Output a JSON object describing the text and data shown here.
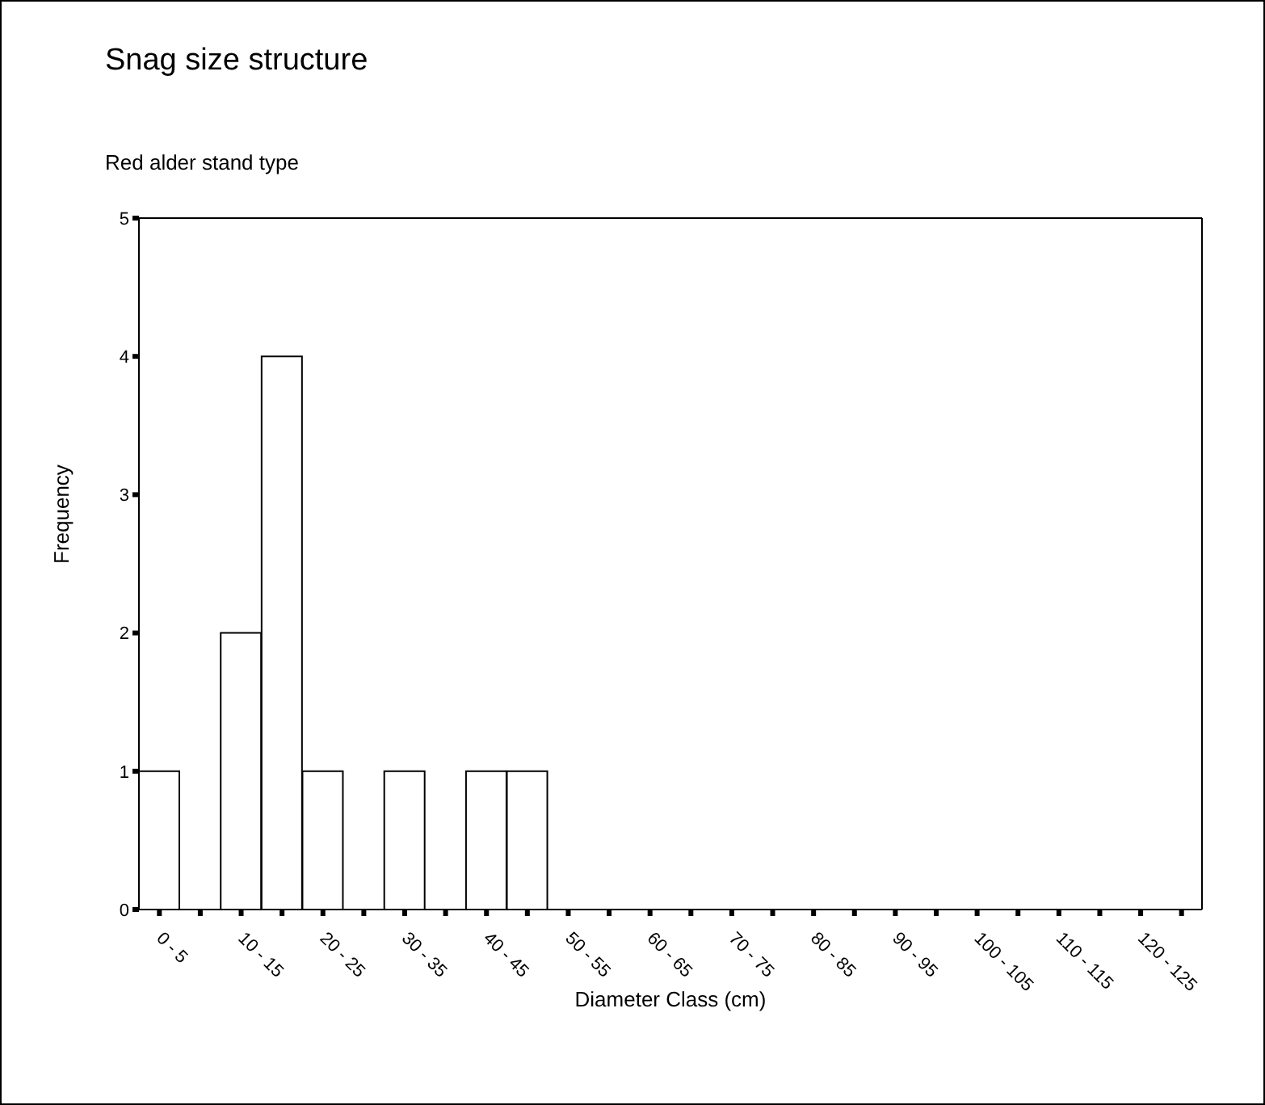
{
  "chart_data": {
    "type": "bar",
    "title": "Snag size structure",
    "subtitle": "Red alder stand type",
    "xlabel": "Diameter Class (cm)",
    "ylabel": "Frequency",
    "categories": [
      "0 - 5",
      null,
      "10 - 15",
      null,
      "20 - 25",
      null,
      "30 - 35",
      null,
      "40 - 45",
      null,
      "50 - 55",
      null,
      "60 - 65",
      null,
      "70 - 75",
      null,
      "80 - 85",
      null,
      "90 - 95",
      null,
      "100 - 105",
      null,
      "110 - 115",
      null,
      "120 - 125",
      null
    ],
    "values": [
      1,
      0,
      2,
      4,
      1,
      0,
      1,
      0,
      1,
      1,
      0,
      0,
      0,
      0,
      0,
      0,
      0,
      0,
      0,
      0,
      0,
      0,
      0,
      0,
      0,
      0
    ],
    "color": "#ffffff",
    "ylim": [
      0,
      5
    ],
    "yticks": [
      0,
      1,
      2,
      3,
      4,
      5
    ],
    "grid": false
  }
}
